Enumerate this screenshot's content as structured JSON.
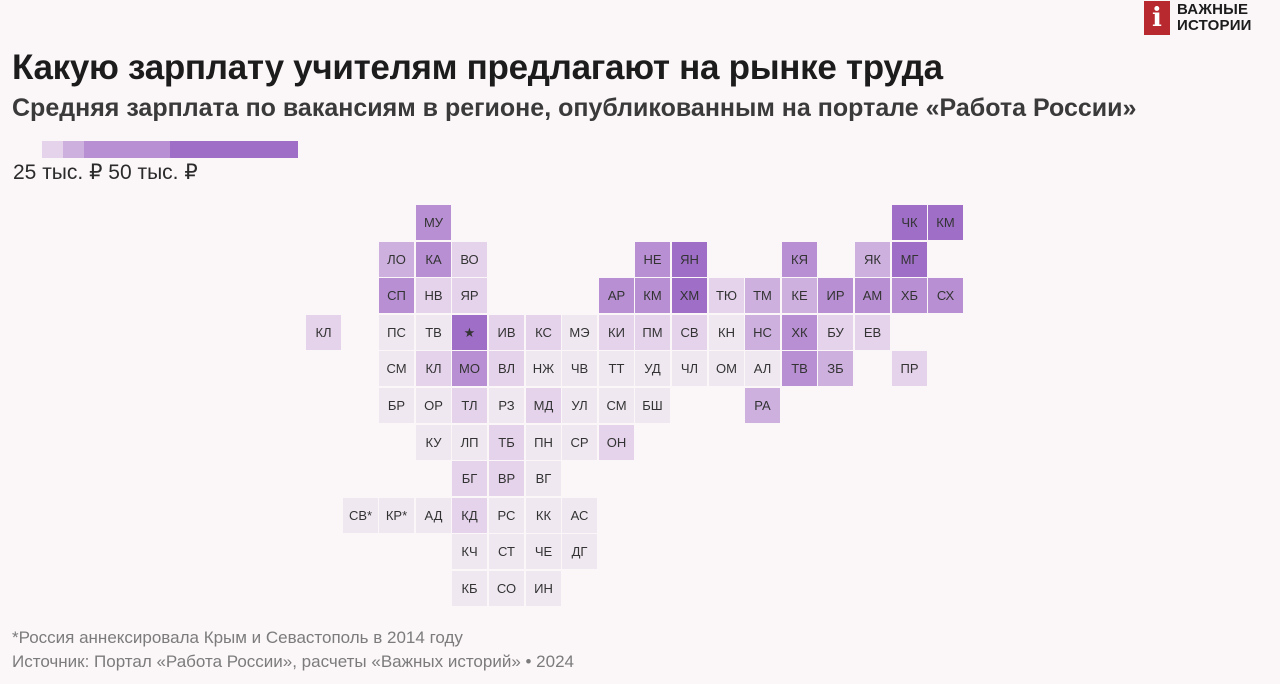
{
  "brand": {
    "mark": "i",
    "line1": "ВАЖНЫЕ",
    "line2": "ИСТОРИИ"
  },
  "title": "Какую зарплату учителям предлагают на рынке труда",
  "subtitle": "Средняя зарплата по вакансиям в регионе, опубликованным на портале «Работа России»",
  "legend": {
    "label": "25 тыс. ₽ 50 тыс. ₽",
    "colors": [
      "#e5d3ec",
      "#cdb0de",
      "#b78fd2",
      "#9f6fc8"
    ]
  },
  "tiles": [
    {
      "label": "МУ",
      "col": 11,
      "row": 0,
      "level": 2
    },
    {
      "label": "ЧК",
      "col": 24,
      "row": 0,
      "level": 3
    },
    {
      "label": "КМ",
      "col": 25,
      "row": 0,
      "level": 3
    },
    {
      "label": "ЛО",
      "col": 10,
      "row": 1,
      "level": 1
    },
    {
      "label": "КА",
      "col": 11,
      "row": 1,
      "level": 2
    },
    {
      "label": "ВО",
      "col": 12,
      "row": 1,
      "level": 0
    },
    {
      "label": "НЕ",
      "col": 17,
      "row": 1,
      "level": 2
    },
    {
      "label": "ЯН",
      "col": 18,
      "row": 1,
      "level": 3
    },
    {
      "label": "КЯ",
      "col": 21,
      "row": 1,
      "level": 2
    },
    {
      "label": "ЯК",
      "col": 23,
      "row": 1,
      "level": 1
    },
    {
      "label": "МГ",
      "col": 24,
      "row": 1,
      "level": 3
    },
    {
      "label": "СП",
      "col": 10,
      "row": 2,
      "level": 2
    },
    {
      "label": "НВ",
      "col": 11,
      "row": 2,
      "level": 0
    },
    {
      "label": "ЯР",
      "col": 12,
      "row": 2,
      "level": 0
    },
    {
      "label": "АР",
      "col": 16,
      "row": 2,
      "level": 2
    },
    {
      "label": "КМ",
      "col": 17,
      "row": 2,
      "level": 2
    },
    {
      "label": "ХМ",
      "col": 18,
      "row": 2,
      "level": 3
    },
    {
      "label": "ТЮ",
      "col": 19,
      "row": 2,
      "level": 0
    },
    {
      "label": "ТМ",
      "col": 20,
      "row": 2,
      "level": 1
    },
    {
      "label": "КЕ",
      "col": 21,
      "row": 2,
      "level": 1
    },
    {
      "label": "ИР",
      "col": 22,
      "row": 2,
      "level": 2
    },
    {
      "label": "АМ",
      "col": 23,
      "row": 2,
      "level": 2
    },
    {
      "label": "ХБ",
      "col": 24,
      "row": 2,
      "level": 2
    },
    {
      "label": "СХ",
      "col": 25,
      "row": 2,
      "level": 2
    },
    {
      "label": "КЛ",
      "col": 8,
      "row": 3,
      "level": 0
    },
    {
      "label": "ПС",
      "col": 10,
      "row": 3,
      "level": -1
    },
    {
      "label": "ТВ",
      "col": 11,
      "row": 3,
      "level": -1
    },
    {
      "label": "★",
      "col": 12,
      "row": 3,
      "level": 3
    },
    {
      "label": "ИВ",
      "col": 13,
      "row": 3,
      "level": 0
    },
    {
      "label": "КС",
      "col": 14,
      "row": 3,
      "level": 0
    },
    {
      "label": "МЭ",
      "col": 15,
      "row": 3,
      "level": -1
    },
    {
      "label": "КИ",
      "col": 16,
      "row": 3,
      "level": 0
    },
    {
      "label": "ПМ",
      "col": 17,
      "row": 3,
      "level": 0
    },
    {
      "label": "СВ",
      "col": 18,
      "row": 3,
      "level": 0
    },
    {
      "label": "КН",
      "col": 19,
      "row": 3,
      "level": -1
    },
    {
      "label": "НС",
      "col": 20,
      "row": 3,
      "level": 1
    },
    {
      "label": "ХК",
      "col": 21,
      "row": 3,
      "level": 2
    },
    {
      "label": "БУ",
      "col": 22,
      "row": 3,
      "level": 0
    },
    {
      "label": "ЕВ",
      "col": 23,
      "row": 3,
      "level": 0
    },
    {
      "label": "СМ",
      "col": 10,
      "row": 4,
      "level": -1
    },
    {
      "label": "КЛ",
      "col": 11,
      "row": 4,
      "level": 0
    },
    {
      "label": "МО",
      "col": 12,
      "row": 4,
      "level": 2
    },
    {
      "label": "ВЛ",
      "col": 13,
      "row": 4,
      "level": 0
    },
    {
      "label": "НЖ",
      "col": 14,
      "row": 4,
      "level": -1
    },
    {
      "label": "ЧВ",
      "col": 15,
      "row": 4,
      "level": -1
    },
    {
      "label": "ТТ",
      "col": 16,
      "row": 4,
      "level": -1
    },
    {
      "label": "УД",
      "col": 17,
      "row": 4,
      "level": -1
    },
    {
      "label": "ЧЛ",
      "col": 18,
      "row": 4,
      "level": -1
    },
    {
      "label": "ОМ",
      "col": 19,
      "row": 4,
      "level": -1
    },
    {
      "label": "АЛ",
      "col": 20,
      "row": 4,
      "level": -1
    },
    {
      "label": "ТВ",
      "col": 21,
      "row": 4,
      "level": 2
    },
    {
      "label": "ЗБ",
      "col": 22,
      "row": 4,
      "level": 1
    },
    {
      "label": "ПР",
      "col": 24,
      "row": 4,
      "level": 0
    },
    {
      "label": "БР",
      "col": 10,
      "row": 5,
      "level": -1
    },
    {
      "label": "ОР",
      "col": 11,
      "row": 5,
      "level": -1
    },
    {
      "label": "ТЛ",
      "col": 12,
      "row": 5,
      "level": 0
    },
    {
      "label": "РЗ",
      "col": 13,
      "row": 5,
      "level": -1
    },
    {
      "label": "МД",
      "col": 14,
      "row": 5,
      "level": 0
    },
    {
      "label": "УЛ",
      "col": 15,
      "row": 5,
      "level": -1
    },
    {
      "label": "СМ",
      "col": 16,
      "row": 5,
      "level": -1
    },
    {
      "label": "БШ",
      "col": 17,
      "row": 5,
      "level": -1
    },
    {
      "label": "РА",
      "col": 20,
      "row": 5,
      "level": 1
    },
    {
      "label": "КУ",
      "col": 11,
      "row": 6,
      "level": -1
    },
    {
      "label": "ЛП",
      "col": 12,
      "row": 6,
      "level": -1
    },
    {
      "label": "ТБ",
      "col": 13,
      "row": 6,
      "level": 0
    },
    {
      "label": "ПН",
      "col": 14,
      "row": 6,
      "level": -1
    },
    {
      "label": "СР",
      "col": 15,
      "row": 6,
      "level": -1
    },
    {
      "label": "ОН",
      "col": 16,
      "row": 6,
      "level": 0
    },
    {
      "label": "БГ",
      "col": 12,
      "row": 7,
      "level": 0
    },
    {
      "label": "ВР",
      "col": 13,
      "row": 7,
      "level": 0
    },
    {
      "label": "ВГ",
      "col": 14,
      "row": 7,
      "level": -1
    },
    {
      "label": "СВ*",
      "col": 9,
      "row": 8,
      "level": -1
    },
    {
      "label": "КР*",
      "col": 10,
      "row": 8,
      "level": -1
    },
    {
      "label": "АД",
      "col": 11,
      "row": 8,
      "level": -1
    },
    {
      "label": "КД",
      "col": 12,
      "row": 8,
      "level": 0
    },
    {
      "label": "РС",
      "col": 13,
      "row": 8,
      "level": -1
    },
    {
      "label": "КК",
      "col": 14,
      "row": 8,
      "level": -1
    },
    {
      "label": "АС",
      "col": 15,
      "row": 8,
      "level": -1
    },
    {
      "label": "КЧ",
      "col": 12,
      "row": 9,
      "level": -1
    },
    {
      "label": "СТ",
      "col": 13,
      "row": 9,
      "level": -1
    },
    {
      "label": "ЧЕ",
      "col": 14,
      "row": 9,
      "level": -1
    },
    {
      "label": "ДГ",
      "col": 15,
      "row": 9,
      "level": -1
    },
    {
      "label": "КБ",
      "col": 12,
      "row": 10,
      "level": -1
    },
    {
      "label": "СО",
      "col": 13,
      "row": 10,
      "level": -1
    },
    {
      "label": "ИН",
      "col": 14,
      "row": 10,
      "level": -1
    }
  ],
  "footnote": "*Россия аннексировала Крым и Севастополь в 2014 году",
  "source": "Источник: Портал «Работа России», расчеты «Важных историй» • 2024"
}
